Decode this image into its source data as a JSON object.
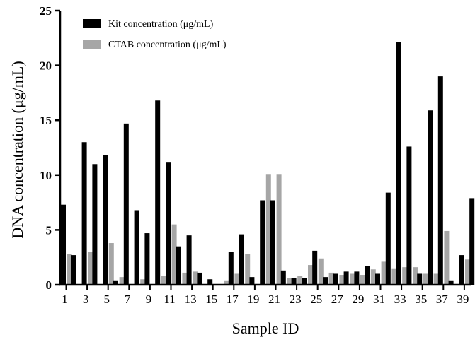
{
  "chart_data": {
    "type": "bar",
    "xlabel": "Sample ID",
    "ylabel": "DNA concentration (μg/mL)",
    "ylim": [
      0,
      25
    ],
    "yticks": [
      0,
      5,
      10,
      15,
      20,
      25
    ],
    "x_tick_labels": [
      "1",
      "3",
      "5",
      "7",
      "9",
      "11",
      "13",
      "15",
      "17",
      "19",
      "21",
      "23",
      "25",
      "27",
      "29",
      "31",
      "33",
      "35",
      "37",
      "39"
    ],
    "categories": [
      "1",
      "2",
      "3",
      "4",
      "5",
      "6",
      "7",
      "8",
      "9",
      "10",
      "11",
      "12",
      "13",
      "14",
      "15",
      "16",
      "17",
      "18",
      "19",
      "20",
      "21",
      "22",
      "23",
      "24",
      "25",
      "26",
      "27",
      "28",
      "29",
      "30",
      "31",
      "32",
      "33",
      "34",
      "35",
      "36",
      "37",
      "38",
      "39",
      "40"
    ],
    "legend_position": "top-left",
    "series": [
      {
        "name": "Kit concentration (μg/mL)",
        "color": "#000000",
        "values": [
          7.3,
          2.7,
          13.0,
          11.0,
          11.8,
          0.4,
          14.7,
          6.8,
          4.7,
          16.8,
          11.2,
          3.5,
          4.5,
          1.1,
          0.5,
          0.0,
          3.0,
          4.6,
          0.7,
          7.7,
          7.7,
          1.3,
          0.6,
          0.6,
          3.1,
          0.7,
          1.0,
          1.2,
          1.2,
          1.7,
          1.0,
          8.4,
          22.1,
          12.6,
          1.0,
          15.9,
          19.0,
          0.4,
          2.7,
          7.9
        ]
      },
      {
        "name": "CTAB concentration (μg/mL)",
        "color": "#a6a6a6",
        "values": [
          2.8,
          0.0,
          3.0,
          0.0,
          3.8,
          0.7,
          0.0,
          0.5,
          0.0,
          0.8,
          5.5,
          1.1,
          1.2,
          0.0,
          0.0,
          0.4,
          1.0,
          2.8,
          0.0,
          10.1,
          10.1,
          0.6,
          0.8,
          1.8,
          2.4,
          1.1,
          0.9,
          1.0,
          0.9,
          1.4,
          2.1,
          1.5,
          1.6,
          1.6,
          1.0,
          1.0,
          4.9,
          0.0,
          2.3,
          0.0
        ]
      }
    ]
  }
}
